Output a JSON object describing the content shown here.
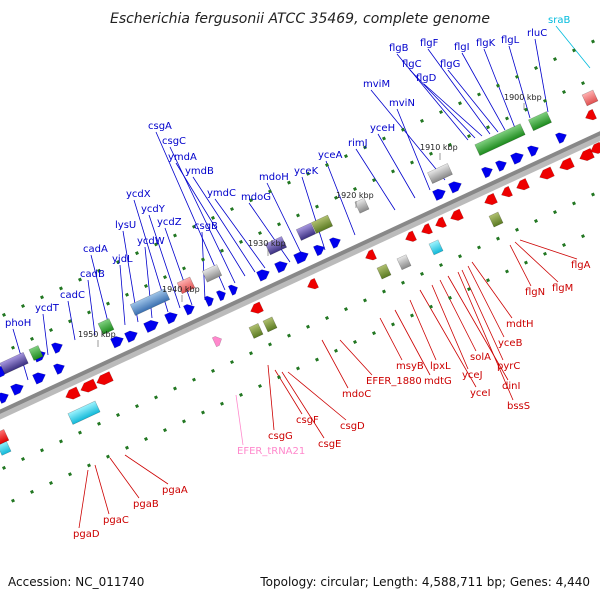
{
  "title": "Escherichia fergusonii ATCC 35469, complete genome",
  "accession": "Accession: NC_011740",
  "summary": "Topology: circular; Length: 4,588,711 bp; Genes: 4,440",
  "colors": {
    "backbone": "#888888",
    "forward_gene": "#0000ee",
    "reverse_gene": "#ee0000",
    "forward_label": "#0000cc",
    "reverse_label": "#cc0000",
    "trna": "#ff88cc",
    "srna": "#00bbdd",
    "tick": "#227722"
  },
  "kbp_marks": [
    "1950 kbp",
    "1940 kbp",
    "1930 kbp",
    "1920 kbp",
    "1910 kbp",
    "1900 kbp"
  ],
  "top_labels": [
    {
      "text": "phoH"
    },
    {
      "text": "ycdT"
    },
    {
      "text": "cadC"
    },
    {
      "text": "cadB"
    },
    {
      "text": "cadA"
    },
    {
      "text": "yjdL"
    },
    {
      "text": "lysU"
    },
    {
      "text": "ycdW"
    },
    {
      "text": "ycdX"
    },
    {
      "text": "ycdY"
    },
    {
      "text": "ycdZ"
    },
    {
      "text": "csgB"
    },
    {
      "text": "csgA"
    },
    {
      "text": "csgC"
    },
    {
      "text": "ymdA"
    },
    {
      "text": "ymdB"
    },
    {
      "text": "ymdC"
    },
    {
      "text": "mdoG"
    },
    {
      "text": "mdoH"
    },
    {
      "text": "yceK"
    },
    {
      "text": "yceA"
    },
    {
      "text": "rimJ"
    },
    {
      "text": "yceH"
    },
    {
      "text": "mviN"
    },
    {
      "text": "mviM"
    },
    {
      "text": "flgB"
    },
    {
      "text": "flgC"
    },
    {
      "text": "flgD"
    },
    {
      "text": "flgF"
    },
    {
      "text": "flgG"
    },
    {
      "text": "flgI"
    },
    {
      "text": "flgK"
    },
    {
      "text": "flgL"
    },
    {
      "text": "rluC"
    },
    {
      "text": "sraB"
    }
  ],
  "bottom_labels": [
    {
      "text": "pgaD"
    },
    {
      "text": "pgaC"
    },
    {
      "text": "pgaB"
    },
    {
      "text": "pgaA"
    },
    {
      "text": "EFER_tRNA21"
    },
    {
      "text": "csgG"
    },
    {
      "text": "csgF"
    },
    {
      "text": "csgE"
    },
    {
      "text": "csgD"
    },
    {
      "text": "mdoC"
    },
    {
      "text": "EFER_1880"
    },
    {
      "text": "msyB"
    },
    {
      "text": "mdtG"
    },
    {
      "text": "lpxL"
    },
    {
      "text": "yceI"
    },
    {
      "text": "yceJ"
    },
    {
      "text": "solA"
    },
    {
      "text": "dinI"
    },
    {
      "text": "bssS"
    },
    {
      "text": "pyrC"
    },
    {
      "text": "yceB"
    },
    {
      "text": "mdtH"
    },
    {
      "text": "flgN"
    },
    {
      "text": "flgM"
    },
    {
      "text": "flgA"
    }
  ]
}
